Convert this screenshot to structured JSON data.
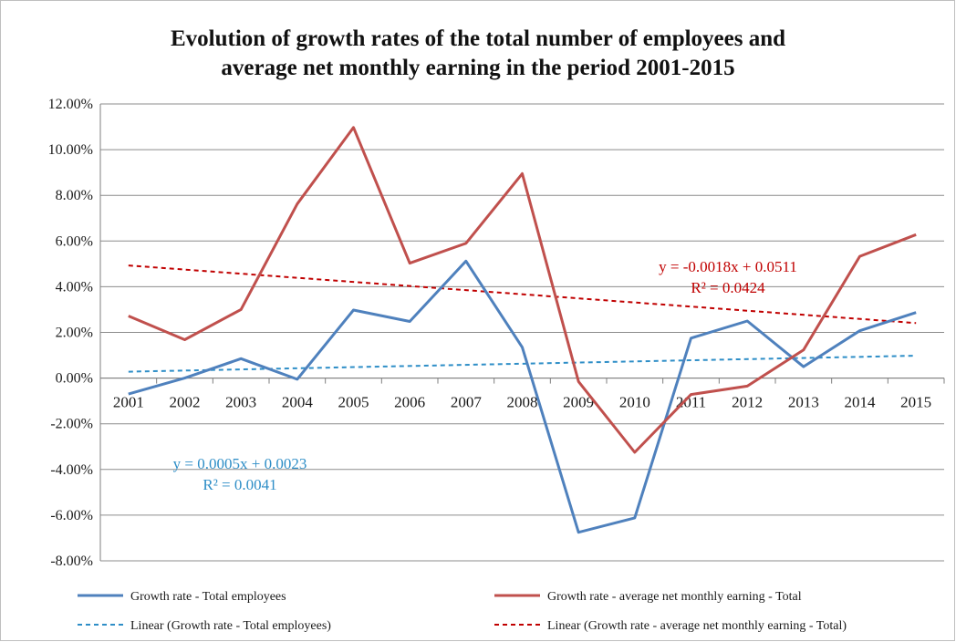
{
  "chart_data": {
    "type": "line",
    "title": [
      "Evolution  of growth rates of the total number of employees and",
      "average net monthly earning in the period 2001-2015"
    ],
    "categories": [
      "2001",
      "2002",
      "2003",
      "2004",
      "2005",
      "2006",
      "2007",
      "2008",
      "2009",
      "2010",
      "2011",
      "2012",
      "2013",
      "2014",
      "2015"
    ],
    "y_ticks": [
      "12.00%",
      "10.00%",
      "8.00%",
      "6.00%",
      "4.00%",
      "2.00%",
      "0.00%",
      "-2.00%",
      "-4.00%",
      "-6.00%",
      "-8.00%"
    ],
    "ylim": [
      -0.08,
      0.12
    ],
    "grid": true,
    "legend_position": "bottom",
    "series": [
      {
        "name": "Growth rate - Total employees",
        "color": "#4f81bd",
        "values": [
          -0.007,
          0.0,
          0.0085,
          -0.0005,
          0.0298,
          0.0248,
          0.0512,
          0.0135,
          -0.0675,
          -0.0612,
          0.0175,
          0.025,
          0.005,
          0.0207,
          0.0287
        ]
      },
      {
        "name": "Growth rate - average net monthly earning - Total",
        "color": "#c0504d",
        "values": [
          0.0272,
          0.0168,
          0.03,
          0.0762,
          0.1097,
          0.0503,
          0.059,
          0.0895,
          -0.0015,
          -0.0325,
          -0.0072,
          -0.0035,
          0.0123,
          0.0533,
          0.0628
        ]
      }
    ],
    "trendlines": [
      {
        "name": "Linear (Growth rate - Total employees)",
        "color": "#2e8ec7",
        "slope": 0.0005,
        "intercept": 0.0023,
        "equation": "y = 0.0005x + 0.0023",
        "r2": "R² = 0.0041"
      },
      {
        "name": "Linear (Growth rate - average net monthly earning - Total)",
        "color": "#c00000",
        "slope": -0.0018,
        "intercept": 0.0511,
        "equation": "y = -0.0018x + 0.0511",
        "r2": "R² = 0.0424"
      }
    ]
  }
}
